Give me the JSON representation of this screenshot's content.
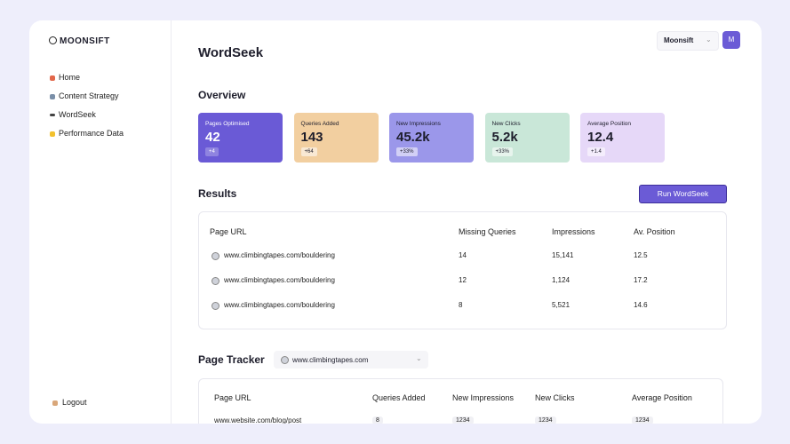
{
  "sidebar": {
    "logo": "MOONSIFT",
    "nav": [
      "Home",
      "Content Strategy",
      "WordSeek",
      "Performance Data"
    ],
    "logout": "Logout"
  },
  "header": {
    "title": "WordSeek",
    "account": "Moonsift",
    "avatar": "M"
  },
  "overview": {
    "title": "Overview",
    "cards": [
      {
        "label": "Pages Optimised",
        "value": "42",
        "change": "+4"
      },
      {
        "label": "Queries Added",
        "value": "143",
        "change": "+64"
      },
      {
        "label": "New Impressions",
        "value": "45.2k",
        "change": "+33%"
      },
      {
        "label": "New Clicks",
        "value": "5.2k",
        "change": "+33%"
      },
      {
        "label": "Average Position",
        "value": "12.4",
        "change": "+1.4"
      }
    ]
  },
  "results": {
    "title": "Results",
    "button": "Run WordSeek",
    "columns": [
      "Page URL",
      "Missing Queries",
      "Impressions",
      "Av. Position"
    ],
    "rows": [
      [
        "www.climbingtapes.com/bouldering",
        "14",
        "15,141",
        "12.5"
      ],
      [
        "www.climbingtapes.com/bouldering",
        "12",
        "1,124",
        "17.2"
      ],
      [
        "www.climbingtapes.com/bouldering",
        "8",
        "5,521",
        "14.6"
      ]
    ]
  },
  "tracker": {
    "title": "Page Tracker",
    "select": "www.climbingtapes.com",
    "columns": [
      "Page URL",
      "Queries Added",
      "New Impressions",
      "New Clicks",
      "Average Position"
    ],
    "rows": [
      [
        "www.website.com/blog/post",
        "8",
        "1234",
        "1234",
        "1234"
      ]
    ]
  }
}
